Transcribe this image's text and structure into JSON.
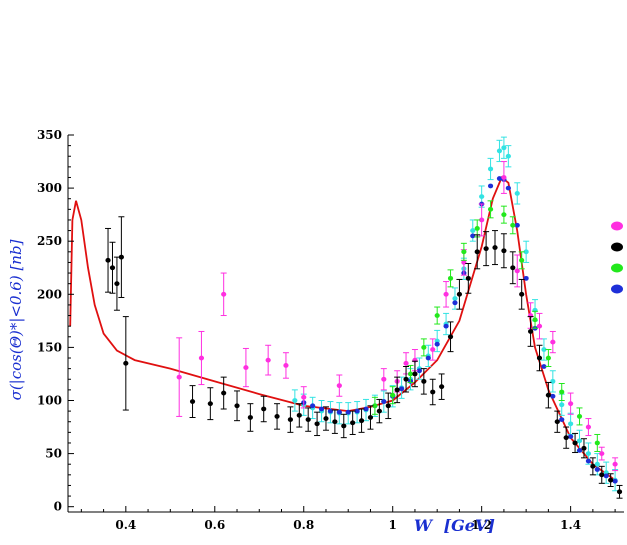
{
  "chart_data": {
    "type": "scatter",
    "title": "",
    "xlabel_main": "W",
    "xlabel_unit": "[GeV]",
    "ylabel": "σ(|cos(Θ)*|<0.6) [nb]",
    "xlim": [
      0.27,
      1.52
    ],
    "ylim": [
      -5,
      350
    ],
    "x_ticks": [
      0.4,
      0.6,
      0.8,
      1.0,
      1.2,
      1.4
    ],
    "x_tick_labels": [
      "0.4",
      "0.6",
      "0.8",
      "1",
      "1.2",
      "1.4"
    ],
    "y_ticks": [
      0,
      50,
      100,
      150,
      200,
      250,
      300,
      350
    ],
    "y_tick_labels": [
      "0",
      "50",
      "100",
      "150",
      "200",
      "250",
      "300",
      "350"
    ],
    "grid": false,
    "legend_placement": "right",
    "legend_markers": [
      "#ff2fe0",
      "#000000",
      "#22e81c",
      "#1e2fd8"
    ],
    "colors": {
      "curve": "#e01010",
      "cyan": "#33e3e3",
      "magenta": "#ff2fe0",
      "black": "#000000",
      "green": "#22e81c",
      "blue": "#1e2fd8",
      "axis_title": "#1a2fd0"
    },
    "series": [
      {
        "kind": "curve",
        "color": "#e01010",
        "x": [
          0.275,
          0.28,
          0.288,
          0.3,
          0.315,
          0.33,
          0.35,
          0.38,
          0.42,
          0.5,
          0.6,
          0.7,
          0.8,
          0.9,
          0.95,
          1.0,
          1.05,
          1.1,
          1.15,
          1.2,
          1.225,
          1.245,
          1.26,
          1.28,
          1.3,
          1.32,
          1.35,
          1.4,
          1.45,
          1.5
        ],
        "y": [
          170,
          270,
          288,
          270,
          225,
          190,
          163,
          147,
          138,
          130,
          118,
          106,
          95,
          90,
          94,
          100,
          117,
          138,
          175,
          245,
          290,
          310,
          305,
          260,
          200,
          150,
          110,
          65,
          40,
          25
        ]
      },
      {
        "kind": "points",
        "color": "#33e3e3",
        "err": 10,
        "x": [
          0.78,
          0.8,
          0.82,
          0.84,
          0.86,
          0.88,
          0.9,
          0.92,
          0.94,
          0.96,
          0.98,
          1.0,
          1.02,
          1.04,
          1.06,
          1.08,
          1.1,
          1.12,
          1.14,
          1.16,
          1.18,
          1.2,
          1.22,
          1.24,
          1.25,
          1.26,
          1.28,
          1.3,
          1.32,
          1.34,
          1.36,
          1.38,
          1.4,
          1.42,
          1.44,
          1.46,
          1.48,
          1.5
        ],
        "y": [
          100,
          96,
          93,
          90,
          89,
          88,
          88,
          89,
          91,
          95,
          99,
          104,
          112,
          120,
          130,
          142,
          156,
          172,
          196,
          224,
          260,
          292,
          318,
          335,
          338,
          330,
          295,
          240,
          185,
          148,
          118,
          96,
          78,
          62,
          50,
          40,
          32,
          25
        ]
      },
      {
        "kind": "points",
        "color": "#1e2fd8",
        "err": 0,
        "x": [
          0.8,
          0.82,
          0.84,
          0.86,
          0.88,
          0.9,
          0.92,
          0.94,
          0.96,
          0.98,
          1.0,
          1.02,
          1.04,
          1.06,
          1.08,
          1.1,
          1.12,
          1.14,
          1.16,
          1.18,
          1.2,
          1.22,
          1.24,
          1.25,
          1.26,
          1.28,
          1.3,
          1.32,
          1.34,
          1.36,
          1.38,
          1.4,
          1.42,
          1.44,
          1.46,
          1.48,
          1.5
        ],
        "y": [
          98,
          95,
          92,
          90,
          89,
          89,
          90,
          92,
          95,
          99,
          104,
          111,
          118,
          128,
          140,
          153,
          170,
          192,
          220,
          255,
          285,
          302,
          309,
          308,
          300,
          265,
          215,
          168,
          132,
          104,
          82,
          66,
          53,
          43,
          35,
          29,
          24
        ]
      },
      {
        "kind": "points",
        "color": "#ff2fe0",
        "err": 20,
        "x": [
          0.52,
          0.57,
          0.62,
          0.67,
          0.72,
          0.76,
          0.8,
          0.88,
          0.98,
          1.01,
          1.03,
          1.05,
          1.09,
          1.12,
          1.16,
          1.2,
          1.25,
          1.28,
          1.31,
          1.33,
          1.36,
          1.4,
          1.44,
          1.47,
          1.5
        ],
        "y": [
          122,
          140,
          200,
          131,
          138,
          133,
          103,
          114,
          120,
          118,
          135,
          138,
          148,
          200,
          230,
          270,
          310,
          222,
          180,
          170,
          155,
          97,
          75,
          50,
          40
        ],
        "errs": [
          37,
          25,
          20,
          18,
          14,
          12,
          10,
          10,
          10,
          10,
          10,
          10,
          10,
          12,
          12,
          15,
          15,
          15,
          12,
          12,
          10,
          10,
          8,
          6,
          6
        ]
      },
      {
        "kind": "points",
        "color": "#22e81c",
        "err": 8,
        "x": [
          0.96,
          1.0,
          1.04,
          1.07,
          1.1,
          1.13,
          1.16,
          1.19,
          1.22,
          1.25,
          1.27,
          1.29,
          1.32,
          1.35,
          1.38,
          1.42,
          1.46
        ],
        "y": [
          95,
          105,
          125,
          150,
          180,
          215,
          240,
          262,
          280,
          275,
          265,
          232,
          176,
          140,
          108,
          85,
          60
        ]
      },
      {
        "kind": "points",
        "color": "#000000",
        "err": 12,
        "x": [
          0.36,
          0.37,
          0.38,
          0.39,
          0.4,
          0.55,
          0.59,
          0.62,
          0.65,
          0.68,
          0.71,
          0.74,
          0.77,
          0.79,
          0.81,
          0.83,
          0.85,
          0.87,
          0.89,
          0.91,
          0.93,
          0.95,
          0.97,
          0.99,
          1.01,
          1.03,
          1.05,
          1.07,
          1.09,
          1.11,
          1.13,
          1.15,
          1.17,
          1.19,
          1.21,
          1.23,
          1.25,
          1.27,
          1.29,
          1.31,
          1.33,
          1.35,
          1.37,
          1.39,
          1.41,
          1.43,
          1.45,
          1.47,
          1.49,
          1.51
        ],
        "y": [
          232,
          225,
          210,
          235,
          135,
          99,
          97,
          107,
          95,
          84,
          92,
          85,
          82,
          86,
          82,
          78,
          83,
          80,
          76,
          79,
          81,
          84,
          90,
          95,
          110,
          120,
          125,
          118,
          108,
          113,
          160,
          200,
          215,
          240,
          243,
          244,
          241,
          225,
          200,
          165,
          140,
          105,
          80,
          65,
          60,
          55,
          38,
          30,
          25,
          14
        ],
        "errs": [
          30,
          24,
          25,
          38,
          44,
          15,
          15,
          15,
          14,
          13,
          12,
          12,
          12,
          11,
          11,
          11,
          11,
          11,
          11,
          11,
          11,
          11,
          11,
          12,
          12,
          12,
          12,
          12,
          12,
          12,
          14,
          14,
          14,
          16,
          16,
          16,
          16,
          15,
          14,
          14,
          12,
          12,
          10,
          10,
          9,
          9,
          8,
          8,
          6,
          6
        ]
      }
    ]
  }
}
